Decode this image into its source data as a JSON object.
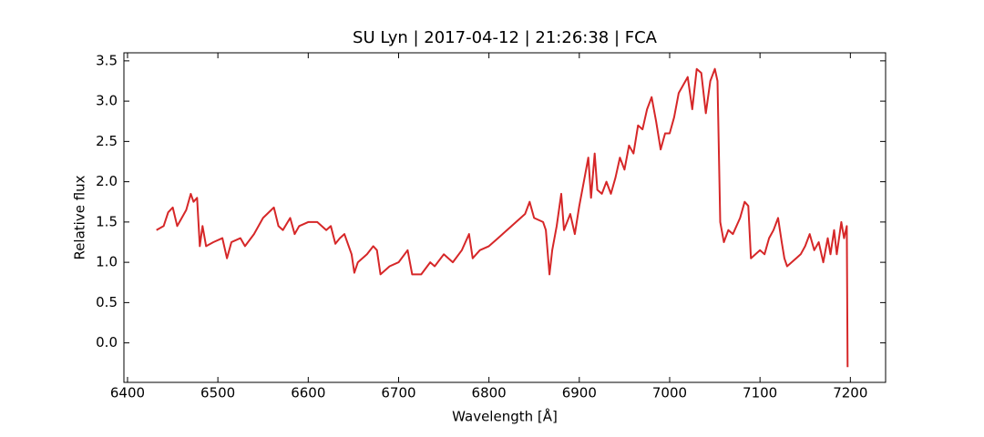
{
  "chart_data": {
    "type": "line",
    "title": "SU Lyn | 2017-04-12 | 21:26:38 | FCA",
    "x_label": "Wavelength [Å]",
    "y_label": "Relative flux",
    "color": "#d62728",
    "x": [
      6432,
      6440,
      6445,
      6450,
      6455,
      6460,
      6465,
      6470,
      6473,
      6477,
      6480,
      6483,
      6487,
      6495,
      6505,
      6510,
      6515,
      6525,
      6530,
      6540,
      6550,
      6562,
      6567,
      6572,
      6580,
      6585,
      6590,
      6600,
      6610,
      6620,
      6625,
      6630,
      6635,
      6640,
      6648,
      6651,
      6655,
      6665,
      6672,
      6676,
      6680,
      6690,
      6700,
      6710,
      6715,
      6725,
      6735,
      6740,
      6750,
      6760,
      6770,
      6778,
      6782,
      6790,
      6800,
      6810,
      6820,
      6830,
      6840,
      6845,
      6850,
      6860,
      6863,
      6867,
      6870,
      6875,
      6880,
      6883,
      6890,
      6895,
      6900,
      6905,
      6910,
      6913,
      6917,
      6920,
      6925,
      6930,
      6935,
      6940,
      6945,
      6950,
      6955,
      6960,
      6965,
      6970,
      6975,
      6980,
      6985,
      6990,
      6995,
      7000,
      7005,
      7010,
      7015,
      7020,
      7025,
      7030,
      7035,
      7040,
      7045,
      7050,
      7053,
      7056,
      7060,
      7065,
      7070,
      7078,
      7083,
      7087,
      7090,
      7100,
      7105,
      7110,
      7115,
      7120,
      7124,
      7127,
      7130,
      7140,
      7145,
      7150,
      7155,
      7160,
      7165,
      7170,
      7175,
      7178,
      7182,
      7185,
      7190,
      7193,
      7196,
      7197
    ],
    "values": [
      1.4,
      1.45,
      1.62,
      1.68,
      1.45,
      1.55,
      1.65,
      1.85,
      1.75,
      1.8,
      1.2,
      1.45,
      1.2,
      1.25,
      1.3,
      1.05,
      1.25,
      1.3,
      1.2,
      1.35,
      1.55,
      1.68,
      1.45,
      1.4,
      1.55,
      1.35,
      1.45,
      1.5,
      1.5,
      1.4,
      1.45,
      1.23,
      1.3,
      1.35,
      1.1,
      0.87,
      1.0,
      1.1,
      1.2,
      1.15,
      0.85,
      0.95,
      1.0,
      1.15,
      0.85,
      0.85,
      1.0,
      0.95,
      1.1,
      1.0,
      1.15,
      1.35,
      1.05,
      1.15,
      1.2,
      1.3,
      1.4,
      1.5,
      1.6,
      1.75,
      1.55,
      1.5,
      1.4,
      0.85,
      1.15,
      1.45,
      1.85,
      1.4,
      1.6,
      1.35,
      1.7,
      2.0,
      2.3,
      1.8,
      2.35,
      1.9,
      1.85,
      2.0,
      1.85,
      2.05,
      2.3,
      2.15,
      2.45,
      2.35,
      2.7,
      2.65,
      2.9,
      3.05,
      2.75,
      2.4,
      2.6,
      2.6,
      2.8,
      3.1,
      3.2,
      3.3,
      2.9,
      3.4,
      3.35,
      2.85,
      3.25,
      3.4,
      3.25,
      1.5,
      1.25,
      1.4,
      1.35,
      1.55,
      1.75,
      1.7,
      1.05,
      1.15,
      1.1,
      1.3,
      1.4,
      1.55,
      1.25,
      1.05,
      0.95,
      1.05,
      1.1,
      1.2,
      1.35,
      1.15,
      1.25,
      1.0,
      1.3,
      1.1,
      1.4,
      1.1,
      1.5,
      1.3,
      1.45,
      -0.3
    ],
    "xlim": [
      6396,
      7239
    ],
    "ylim": [
      -0.49,
      3.6
    ],
    "xticks": [
      6400,
      6500,
      6600,
      6700,
      6800,
      6900,
      7000,
      7100,
      7200
    ],
    "yticks": [
      {
        "value": 0,
        "label": "0.0"
      },
      0.5,
      {
        "value": 1,
        "label": "1.0"
      },
      1.5,
      {
        "value": 2,
        "label": "2.0"
      },
      2.5,
      {
        "value": 3,
        "label": "3.0"
      },
      3.5
    ]
  }
}
